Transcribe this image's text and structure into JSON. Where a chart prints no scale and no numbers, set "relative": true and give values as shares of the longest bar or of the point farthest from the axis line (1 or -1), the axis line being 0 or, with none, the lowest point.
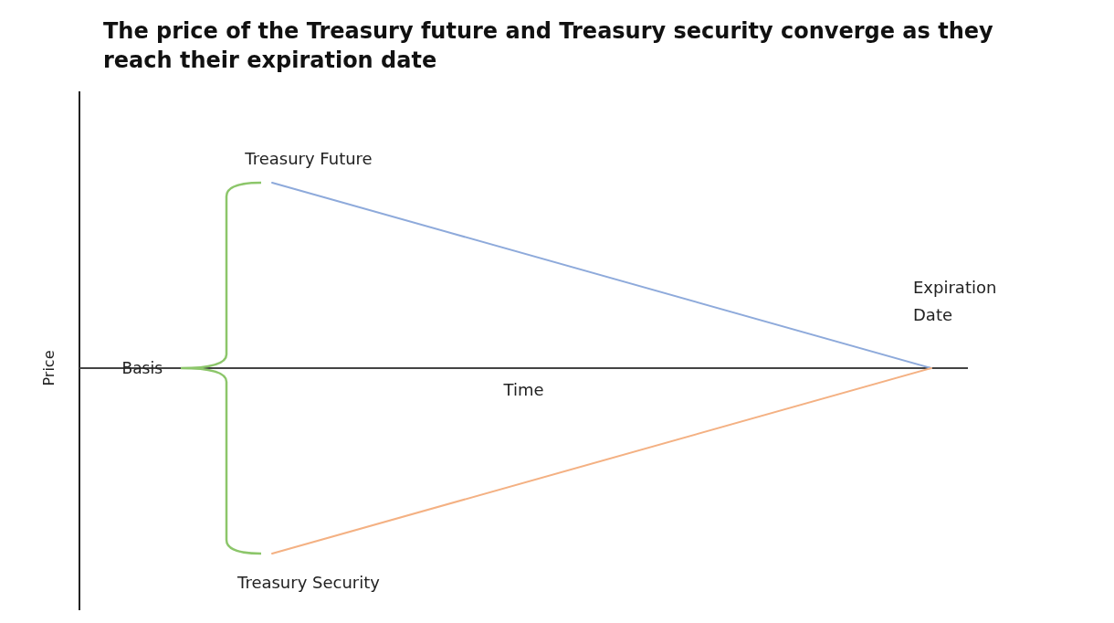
{
  "chart_data": {
    "type": "line",
    "title": "The price of the Treasury future and Treasury security converge as they reach their expiration date",
    "xlabel": "Time",
    "ylabel": "Price",
    "relative": true,
    "categories": [
      null,
      null
    ],
    "series": [
      {
        "name": "Treasury Future",
        "color": "#8eaadb",
        "values": [
          1,
          0
        ]
      },
      {
        "name": "Treasury Security",
        "color": "#f4b183",
        "values": [
          -1,
          0
        ]
      }
    ],
    "annotations": [
      "Expiration Date",
      "Basis"
    ],
    "marker": "none",
    "line_style": "solid"
  }
}
